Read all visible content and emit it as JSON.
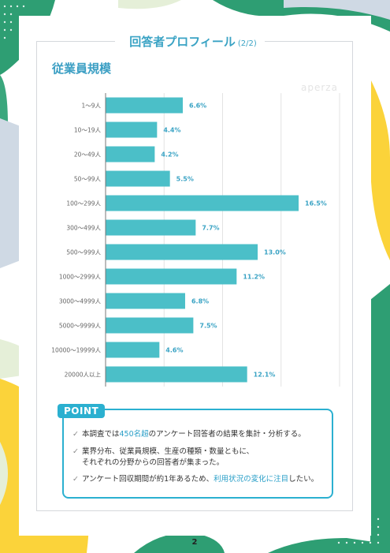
{
  "header": {
    "title": "回答者プロフィール",
    "page_indicator": "(2/2)"
  },
  "section_title": "従業員規模",
  "watermark": "aperza",
  "colors": {
    "bar": "#4bbfc8",
    "label": "#3aa3c4",
    "accent": "#2bb0d0"
  },
  "chart_data": {
    "type": "bar",
    "orientation": "horizontal",
    "title": "従業員規模",
    "categories": [
      "1〜9人",
      "10〜19人",
      "20〜49人",
      "50〜99人",
      "100〜299人",
      "300〜499人",
      "500〜999人",
      "1000〜2999人",
      "3000〜4999人",
      "5000〜9999人",
      "10000〜19999人",
      "20000人以上"
    ],
    "values": [
      6.6,
      4.4,
      4.2,
      5.5,
      16.5,
      7.7,
      13.0,
      11.2,
      6.8,
      7.5,
      4.6,
      12.1
    ],
    "value_labels": [
      "6.6%",
      "4.4%",
      "4.2%",
      "5.5%",
      "16.5%",
      "7.7%",
      "13.0%",
      "11.2%",
      "6.8%",
      "7.5%",
      "4.6%",
      "12.1%"
    ],
    "xlim": [
      0,
      20
    ],
    "grid": true
  },
  "point": {
    "tag": "POINT",
    "lines": [
      {
        "pre": "本調査では",
        "highlight": "450名超",
        "post": "のアンケート回答者の結果を集計・分析する。"
      },
      {
        "pre": "業界分布、従業員規模、生産の種類・数量ともに、",
        "highlight": "",
        "post": ""
      },
      {
        "pre": "それぞれの分野からの回答者が集まった。",
        "highlight": "",
        "post": ""
      },
      {
        "pre": "アンケート回収期間が約1年あるため、",
        "highlight": "利用状況の変化に注目",
        "post": "したい。"
      }
    ]
  },
  "page_number": "2"
}
